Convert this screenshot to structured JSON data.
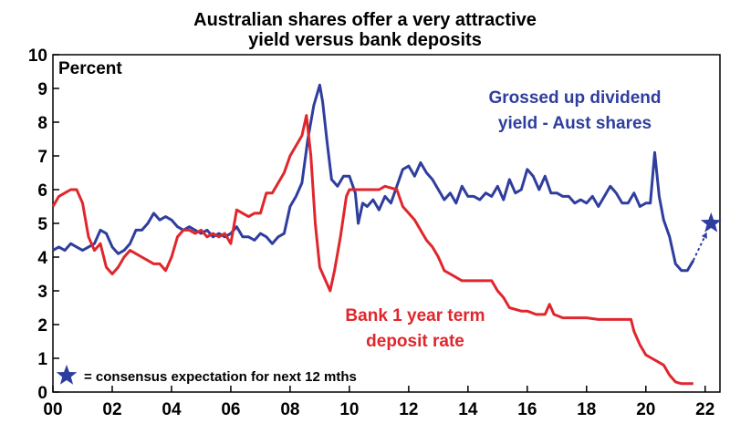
{
  "chart_data": {
    "type": "line",
    "title_lines": [
      "Australian shares offer a very attractive",
      "yield versus bank deposits"
    ],
    "ylabel": "Percent",
    "xlabel": "",
    "x_unit": "year",
    "xlim": [
      2000,
      2022.5
    ],
    "ylim": [
      0,
      10
    ],
    "grid": false,
    "x_ticks": [
      2000,
      2002,
      2004,
      2006,
      2008,
      2010,
      2012,
      2014,
      2016,
      2018,
      2020,
      2022
    ],
    "x_tick_labels": [
      "00",
      "02",
      "04",
      "06",
      "08",
      "10",
      "12",
      "14",
      "16",
      "18",
      "20",
      "22"
    ],
    "y_ticks": [
      0,
      1,
      2,
      3,
      4,
      5,
      6,
      7,
      8,
      9,
      10
    ],
    "y_tick_labels": [
      "0",
      "1",
      "2",
      "3",
      "4",
      "5",
      "6",
      "7",
      "8",
      "9",
      "10"
    ],
    "series": [
      {
        "name": "Grossed up dividend yield - Aust shares",
        "label_lines": [
          "Grossed up dividend",
          "yield - Aust shares"
        ],
        "color": "#2f3e9e",
        "points": [
          [
            2000.0,
            4.2
          ],
          [
            2000.2,
            4.3
          ],
          [
            2000.4,
            4.2
          ],
          [
            2000.6,
            4.4
          ],
          [
            2000.8,
            4.3
          ],
          [
            2001.0,
            4.2
          ],
          [
            2001.2,
            4.3
          ],
          [
            2001.4,
            4.4
          ],
          [
            2001.6,
            4.8
          ],
          [
            2001.8,
            4.7
          ],
          [
            2002.0,
            4.3
          ],
          [
            2002.2,
            4.1
          ],
          [
            2002.4,
            4.2
          ],
          [
            2002.6,
            4.4
          ],
          [
            2002.8,
            4.8
          ],
          [
            2003.0,
            4.8
          ],
          [
            2003.2,
            5.0
          ],
          [
            2003.4,
            5.3
          ],
          [
            2003.6,
            5.1
          ],
          [
            2003.8,
            5.2
          ],
          [
            2004.0,
            5.1
          ],
          [
            2004.2,
            4.9
          ],
          [
            2004.4,
            4.8
          ],
          [
            2004.6,
            4.9
          ],
          [
            2004.8,
            4.8
          ],
          [
            2005.0,
            4.7
          ],
          [
            2005.2,
            4.8
          ],
          [
            2005.4,
            4.6
          ],
          [
            2005.6,
            4.7
          ],
          [
            2005.8,
            4.6
          ],
          [
            2006.0,
            4.7
          ],
          [
            2006.2,
            4.9
          ],
          [
            2006.4,
            4.6
          ],
          [
            2006.6,
            4.6
          ],
          [
            2006.8,
            4.5
          ],
          [
            2007.0,
            4.7
          ],
          [
            2007.2,
            4.6
          ],
          [
            2007.4,
            4.4
          ],
          [
            2007.6,
            4.6
          ],
          [
            2007.8,
            4.7
          ],
          [
            2008.0,
            5.5
          ],
          [
            2008.2,
            5.8
          ],
          [
            2008.4,
            6.2
          ],
          [
            2008.6,
            7.5
          ],
          [
            2008.8,
            8.5
          ],
          [
            2009.0,
            9.1
          ],
          [
            2009.1,
            8.6
          ],
          [
            2009.25,
            7.4
          ],
          [
            2009.4,
            6.3
          ],
          [
            2009.6,
            6.1
          ],
          [
            2009.8,
            6.4
          ],
          [
            2010.0,
            6.4
          ],
          [
            2010.2,
            5.9
          ],
          [
            2010.3,
            5.0
          ],
          [
            2010.45,
            5.6
          ],
          [
            2010.6,
            5.5
          ],
          [
            2010.8,
            5.7
          ],
          [
            2011.0,
            5.4
          ],
          [
            2011.2,
            5.8
          ],
          [
            2011.4,
            5.6
          ],
          [
            2011.6,
            6.1
          ],
          [
            2011.8,
            6.6
          ],
          [
            2012.0,
            6.7
          ],
          [
            2012.2,
            6.4
          ],
          [
            2012.4,
            6.8
          ],
          [
            2012.6,
            6.5
          ],
          [
            2012.8,
            6.3
          ],
          [
            2013.0,
            6.0
          ],
          [
            2013.2,
            5.7
          ],
          [
            2013.4,
            5.9
          ],
          [
            2013.6,
            5.6
          ],
          [
            2013.8,
            6.1
          ],
          [
            2014.0,
            5.8
          ],
          [
            2014.2,
            5.8
          ],
          [
            2014.4,
            5.7
          ],
          [
            2014.6,
            5.9
          ],
          [
            2014.8,
            5.8
          ],
          [
            2015.0,
            6.1
          ],
          [
            2015.2,
            5.7
          ],
          [
            2015.4,
            6.3
          ],
          [
            2015.6,
            5.9
          ],
          [
            2015.8,
            6.0
          ],
          [
            2016.0,
            6.6
          ],
          [
            2016.2,
            6.4
          ],
          [
            2016.4,
            6.0
          ],
          [
            2016.6,
            6.4
          ],
          [
            2016.8,
            5.9
          ],
          [
            2017.0,
            5.9
          ],
          [
            2017.2,
            5.8
          ],
          [
            2017.4,
            5.8
          ],
          [
            2017.6,
            5.6
          ],
          [
            2017.8,
            5.7
          ],
          [
            2018.0,
            5.6
          ],
          [
            2018.2,
            5.8
          ],
          [
            2018.4,
            5.5
          ],
          [
            2018.6,
            5.8
          ],
          [
            2018.8,
            6.1
          ],
          [
            2019.0,
            5.9
          ],
          [
            2019.2,
            5.6
          ],
          [
            2019.4,
            5.6
          ],
          [
            2019.6,
            5.9
          ],
          [
            2019.8,
            5.5
          ],
          [
            2020.0,
            5.6
          ],
          [
            2020.15,
            5.6
          ],
          [
            2020.3,
            7.1
          ],
          [
            2020.45,
            5.8
          ],
          [
            2020.6,
            5.1
          ],
          [
            2020.8,
            4.6
          ],
          [
            2021.0,
            3.8
          ],
          [
            2021.2,
            3.6
          ],
          [
            2021.4,
            3.6
          ],
          [
            2021.6,
            3.9
          ]
        ]
      },
      {
        "name": "Bank 1 year term deposit rate",
        "label_lines": [
          "Bank 1 year term",
          "deposit rate"
        ],
        "color": "#e0262c",
        "points": [
          [
            2000.0,
            5.5
          ],
          [
            2000.2,
            5.8
          ],
          [
            2000.4,
            5.9
          ],
          [
            2000.6,
            6.0
          ],
          [
            2000.8,
            6.0
          ],
          [
            2001.0,
            5.6
          ],
          [
            2001.2,
            4.6
          ],
          [
            2001.4,
            4.2
          ],
          [
            2001.6,
            4.4
          ],
          [
            2001.8,
            3.7
          ],
          [
            2002.0,
            3.5
          ],
          [
            2002.2,
            3.7
          ],
          [
            2002.4,
            4.0
          ],
          [
            2002.6,
            4.2
          ],
          [
            2002.8,
            4.1
          ],
          [
            2003.0,
            4.0
          ],
          [
            2003.2,
            3.9
          ],
          [
            2003.4,
            3.8
          ],
          [
            2003.6,
            3.8
          ],
          [
            2003.8,
            3.6
          ],
          [
            2004.0,
            4.0
          ],
          [
            2004.2,
            4.6
          ],
          [
            2004.4,
            4.8
          ],
          [
            2004.6,
            4.8
          ],
          [
            2004.8,
            4.7
          ],
          [
            2005.0,
            4.8
          ],
          [
            2005.2,
            4.6
          ],
          [
            2005.4,
            4.7
          ],
          [
            2005.6,
            4.6
          ],
          [
            2005.8,
            4.7
          ],
          [
            2006.0,
            4.4
          ],
          [
            2006.2,
            5.4
          ],
          [
            2006.4,
            5.3
          ],
          [
            2006.6,
            5.2
          ],
          [
            2006.8,
            5.3
          ],
          [
            2007.0,
            5.3
          ],
          [
            2007.2,
            5.9
          ],
          [
            2007.4,
            5.9
          ],
          [
            2007.6,
            6.2
          ],
          [
            2007.8,
            6.5
          ],
          [
            2008.0,
            7.0
          ],
          [
            2008.2,
            7.3
          ],
          [
            2008.4,
            7.6
          ],
          [
            2008.55,
            8.2
          ],
          [
            2008.7,
            7.0
          ],
          [
            2008.85,
            5.0
          ],
          [
            2009.0,
            3.7
          ],
          [
            2009.2,
            3.3
          ],
          [
            2009.35,
            3.0
          ],
          [
            2009.5,
            3.6
          ],
          [
            2009.7,
            4.6
          ],
          [
            2009.9,
            5.8
          ],
          [
            2010.0,
            6.0
          ],
          [
            2010.5,
            6.0
          ],
          [
            2011.0,
            6.0
          ],
          [
            2011.2,
            6.1
          ],
          [
            2011.6,
            6.0
          ],
          [
            2011.8,
            5.5
          ],
          [
            2012.0,
            5.3
          ],
          [
            2012.2,
            5.1
          ],
          [
            2012.4,
            4.8
          ],
          [
            2012.6,
            4.5
          ],
          [
            2012.8,
            4.3
          ],
          [
            2013.0,
            4.0
          ],
          [
            2013.2,
            3.6
          ],
          [
            2013.4,
            3.5
          ],
          [
            2013.6,
            3.4
          ],
          [
            2013.8,
            3.3
          ],
          [
            2014.0,
            3.3
          ],
          [
            2014.4,
            3.3
          ],
          [
            2014.8,
            3.3
          ],
          [
            2015.0,
            3.0
          ],
          [
            2015.2,
            2.8
          ],
          [
            2015.4,
            2.5
          ],
          [
            2015.8,
            2.4
          ],
          [
            2016.0,
            2.4
          ],
          [
            2016.3,
            2.3
          ],
          [
            2016.6,
            2.3
          ],
          [
            2016.75,
            2.6
          ],
          [
            2016.9,
            2.3
          ],
          [
            2017.2,
            2.2
          ],
          [
            2017.6,
            2.2
          ],
          [
            2018.0,
            2.2
          ],
          [
            2018.4,
            2.15
          ],
          [
            2018.8,
            2.15
          ],
          [
            2019.2,
            2.15
          ],
          [
            2019.5,
            2.15
          ],
          [
            2019.6,
            1.8
          ],
          [
            2019.8,
            1.4
          ],
          [
            2020.0,
            1.1
          ],
          [
            2020.2,
            1.0
          ],
          [
            2020.4,
            0.9
          ],
          [
            2020.6,
            0.8
          ],
          [
            2020.8,
            0.5
          ],
          [
            2021.0,
            0.3
          ],
          [
            2021.2,
            0.25
          ],
          [
            2021.6,
            0.25
          ]
        ]
      }
    ],
    "forecast": {
      "from": [
        2021.6,
        3.9
      ],
      "to": [
        2022.2,
        5.0
      ],
      "color": "#2f3e9e",
      "marker": "star"
    },
    "legend": {
      "marker": "star",
      "text": "= consensus expectation for next 12 mths",
      "placement": "bottom-left"
    }
  }
}
